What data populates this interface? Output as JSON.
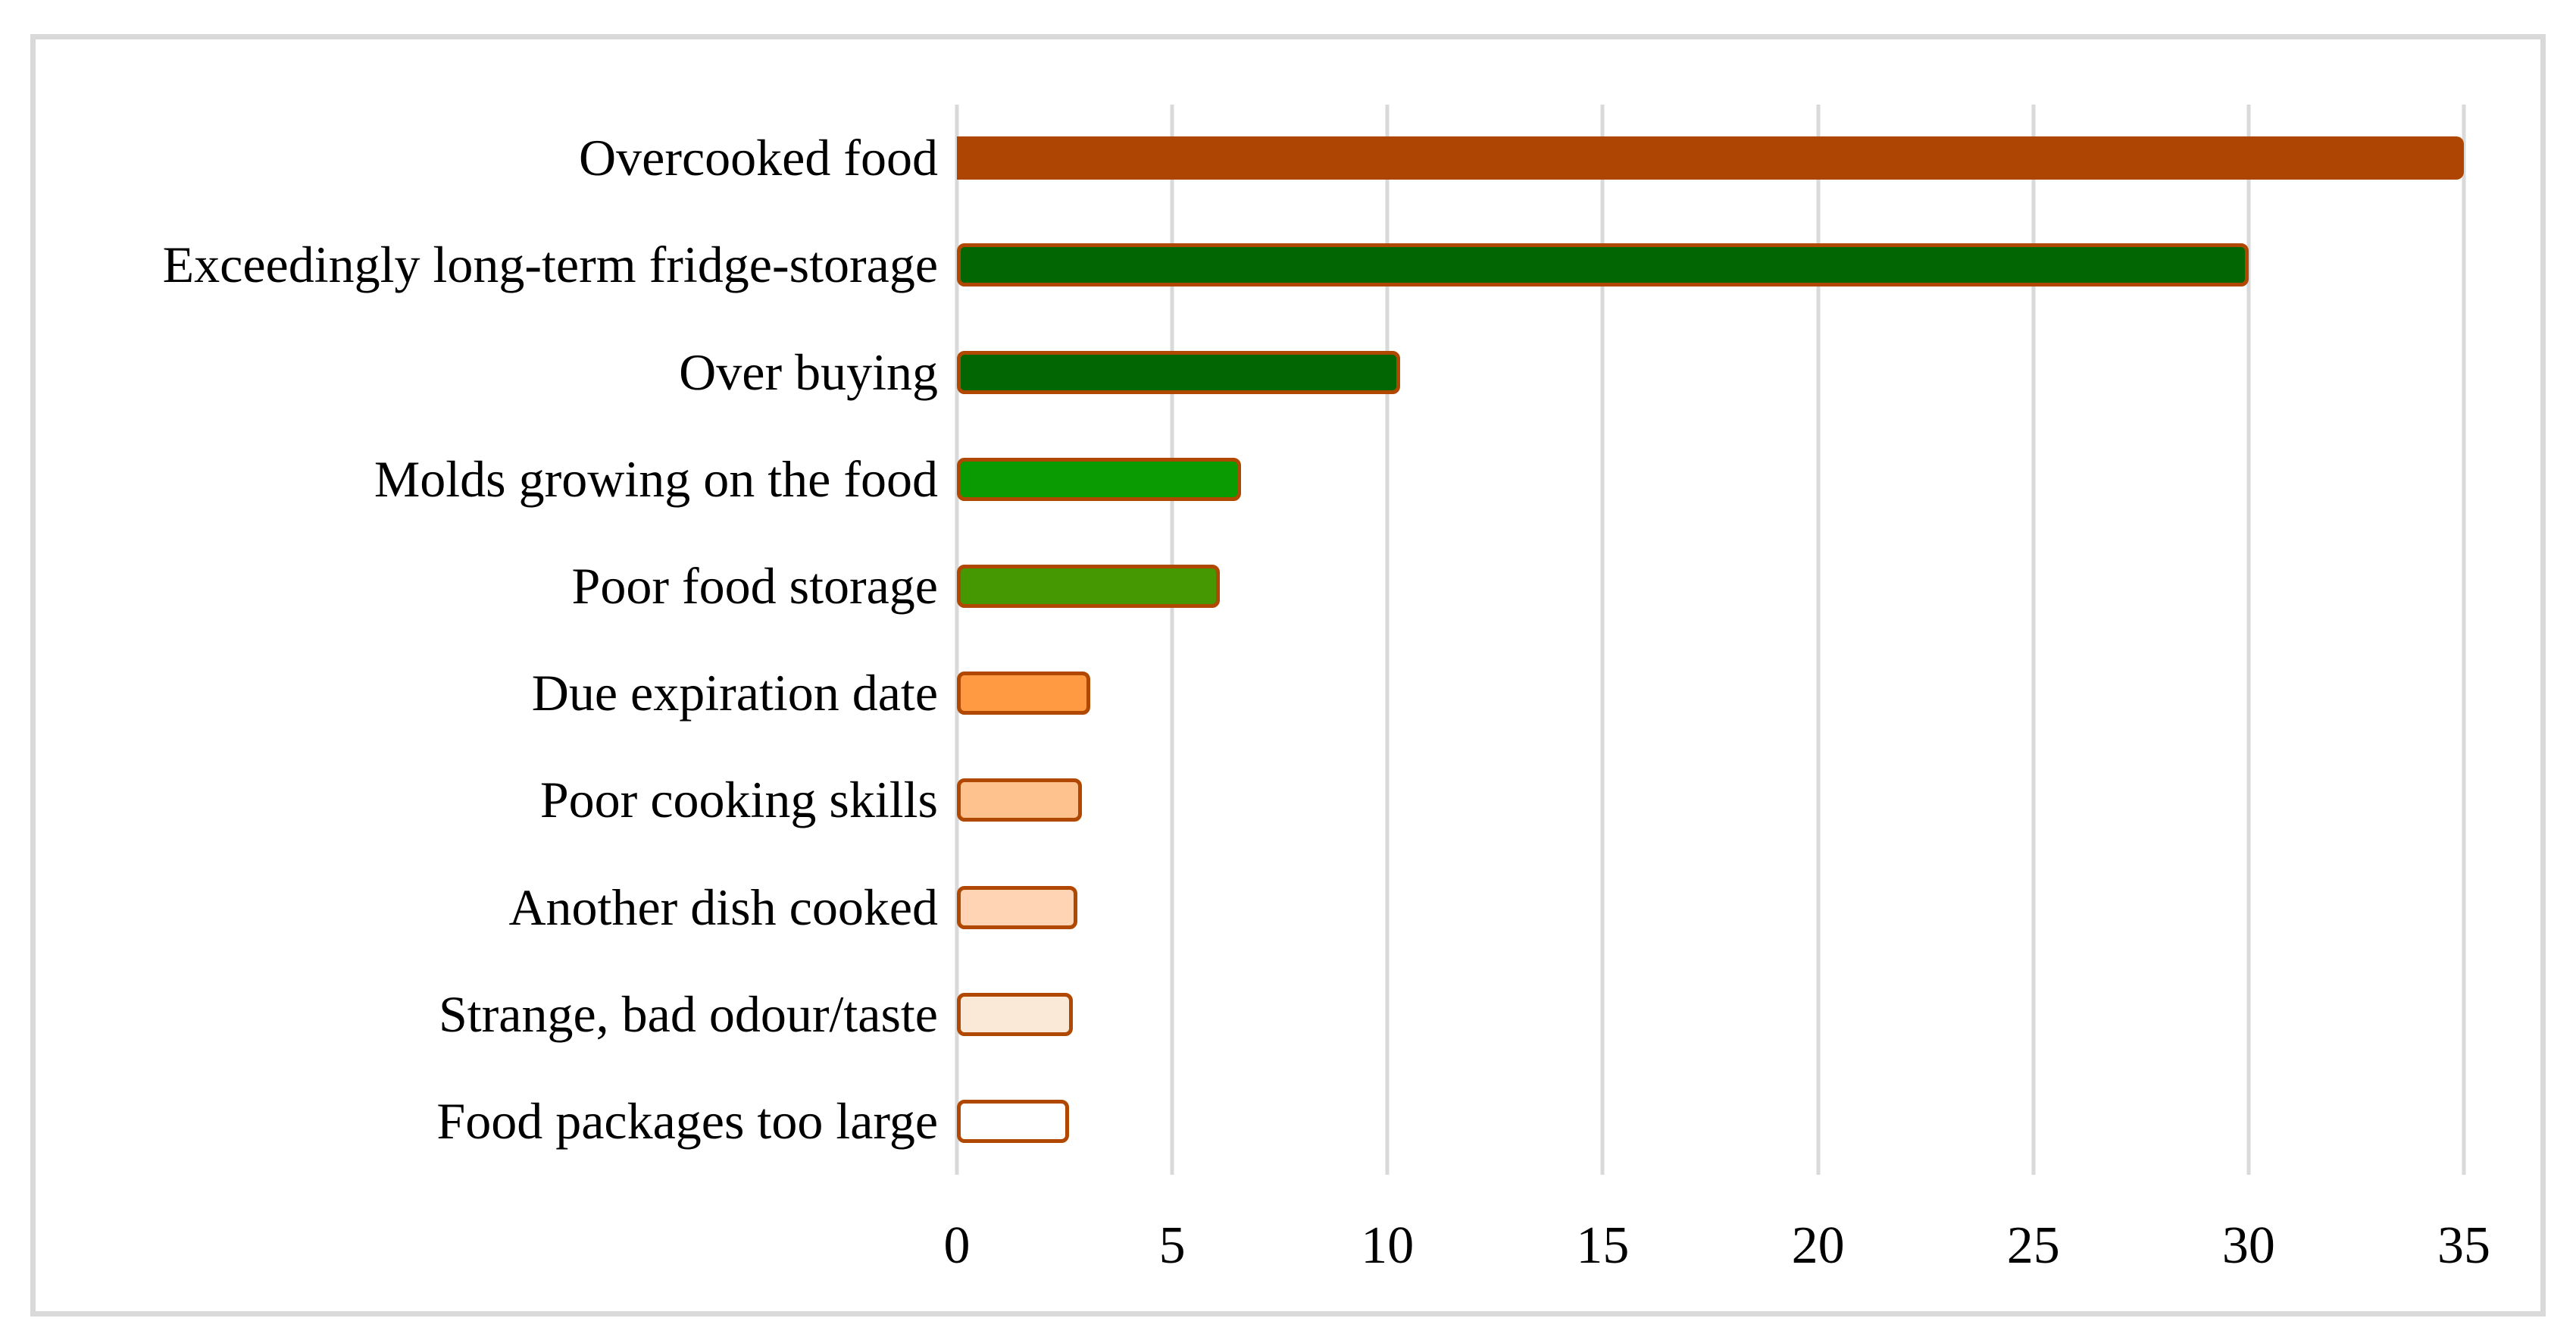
{
  "figure": {
    "background_color": "#ffffff",
    "frame_color": "#d9d9d9"
  },
  "chart_data": {
    "type": "bar",
    "orientation": "horizontal",
    "title": "",
    "xlabel": "",
    "ylabel": "",
    "legend": "none",
    "grid": "vertical-gridlines",
    "gridline_color": "#d9d9d9",
    "categories": [
      "Overcooked food",
      "Exceedingly long-term fridge-storage",
      "Over buying",
      "Molds growing on the food",
      "Poor food storage",
      "Due expiration date",
      "Poor cooking skills",
      "Another dish cooked",
      "Strange, bad odour/taste",
      "Food packages too large"
    ],
    "values": [
      35,
      30,
      10.3,
      6.6,
      6.1,
      3.1,
      2.9,
      2.8,
      2.7,
      2.6
    ],
    "bar_fill_colors": [
      "#af4502",
      "#026702",
      "#026702",
      "#0a9b02",
      "#459802",
      "#ff9a42",
      "#fec28e",
      "#fed4b4",
      "#fbe9d8",
      "#ffffff"
    ],
    "bar_has_border": [
      false,
      true,
      true,
      true,
      true,
      true,
      true,
      true,
      true,
      true
    ],
    "bar_border_color": "#b04802",
    "xlim": [
      0,
      35
    ],
    "xticks": [
      0,
      5,
      10,
      15,
      20,
      25,
      30,
      35
    ],
    "tick_label_color": "#000000",
    "category_label_color": "#000000"
  }
}
